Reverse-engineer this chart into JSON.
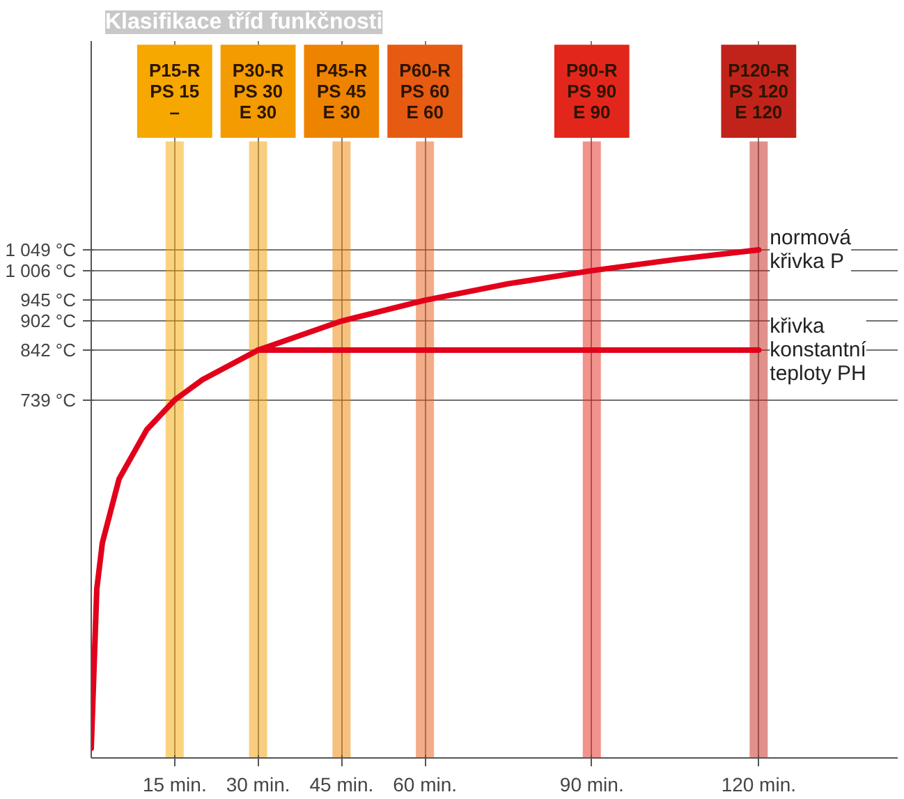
{
  "chart_data": {
    "type": "line",
    "title": "Klasifikace tříd funkčnosti",
    "xlim": [
      0,
      145
    ],
    "ylim": [
      0,
      1480
    ],
    "xticks": [
      {
        "value": 15,
        "label": "15 min."
      },
      {
        "value": 30,
        "label": "30 min."
      },
      {
        "value": 45,
        "label": "45 min."
      },
      {
        "value": 60,
        "label": "60 min."
      },
      {
        "value": 90,
        "label": "90 min."
      },
      {
        "value": 120,
        "label": "120 min."
      }
    ],
    "yticks": [
      {
        "value": 1049,
        "label": "1 049 °C"
      },
      {
        "value": 1006,
        "label": "1 006 °C"
      },
      {
        "value": 945,
        "label": "945 °C"
      },
      {
        "value": 902,
        "label": "902 °C"
      },
      {
        "value": 842,
        "label": "842 °C"
      },
      {
        "value": 739,
        "label": "739 °C"
      }
    ],
    "grid": true,
    "marker": "none",
    "line_style": "solid",
    "series": [
      {
        "name": "normová křivka P",
        "color": "#e2001a",
        "x": [
          0,
          1,
          2,
          5,
          10,
          15,
          20,
          30,
          45,
          60,
          75,
          90,
          105,
          120
        ],
        "values": [
          20,
          349,
          444,
          576,
          678,
          739,
          781,
          842,
          902,
          945,
          979,
          1006,
          1029,
          1049
        ]
      },
      {
        "name": "křivka konstantní teploty PH",
        "color": "#e2001a",
        "x": [
          30,
          120
        ],
        "values": [
          842,
          842
        ]
      }
    ],
    "ref_lines": [
      {
        "axis": "x",
        "value": 15,
        "label": "P15-R\nPS 15\n–",
        "color": "#f6a800"
      },
      {
        "axis": "x",
        "value": 30,
        "label": "P30-R\nPS 30\nE 30",
        "color": "#f39b00"
      },
      {
        "axis": "x",
        "value": 45,
        "label": "P45-R\nPS 45\nE 30",
        "color": "#ee8300"
      },
      {
        "axis": "x",
        "value": 60,
        "label": "P60-R\nPS 60\nE 60",
        "color": "#e75a12"
      },
      {
        "axis": "x",
        "value": 90,
        "label": "P90-R\nPS 90\nE 90",
        "color": "#e3261b"
      },
      {
        "axis": "x",
        "value": 120,
        "label": "P120-R\nPS 120\nE 120",
        "color": "#c1231a"
      }
    ]
  }
}
